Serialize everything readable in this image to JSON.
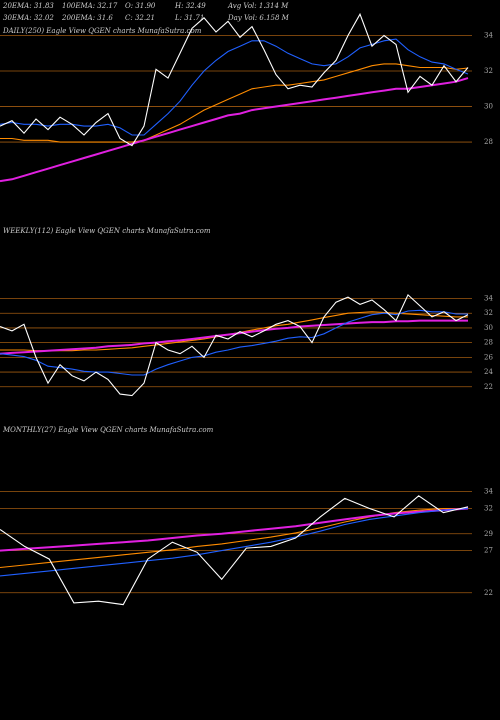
{
  "header": {
    "stats": [
      "20EMA: 31.83",
      "100EMA: 32.17",
      "O: 31.90",
      "H: 32.49",
      "Avg Vol: 1.314  M",
      "30EMA: 32.02",
      "200EMA: 31.6",
      "C: 32.21",
      "L: 31.71",
      "Day Vol: 6.158  M"
    ]
  },
  "chart_data": [
    {
      "type": "line",
      "title": "DAILY(250) Eagle  View  QGEN  charts MunafaSutra.com",
      "ylim": [
        25.3,
        36
      ],
      "yticks": [
        34,
        32,
        30,
        28
      ],
      "series": [
        {
          "color": "#ff8c00",
          "values": [
            28.2,
            28.2,
            28.1,
            28.1,
            28.1,
            28.0,
            28.0,
            28.0,
            28.0,
            28.0,
            28.0,
            28.0,
            28.1,
            28.4,
            28.7,
            29.0,
            29.4,
            29.8,
            30.1,
            30.4,
            30.7,
            31.0,
            31.1,
            31.2,
            31.2,
            31.3,
            31.4,
            31.5,
            31.7,
            31.9,
            32.1,
            32.3,
            32.4,
            32.4,
            32.3,
            32.2,
            32.2,
            32.2,
            32.1,
            32.17
          ]
        },
        {
          "color": "#e020e0",
          "values": [
            25.8,
            25.9,
            26.1,
            26.3,
            26.5,
            26.7,
            26.9,
            27.1,
            27.3,
            27.5,
            27.7,
            27.9,
            28.1,
            28.3,
            28.5,
            28.7,
            28.9,
            29.1,
            29.3,
            29.5,
            29.6,
            29.8,
            29.9,
            30.0,
            30.1,
            30.2,
            30.3,
            30.4,
            30.5,
            30.6,
            30.7,
            30.8,
            30.9,
            31.0,
            31.0,
            31.1,
            31.2,
            31.3,
            31.4,
            31.6
          ]
        },
        {
          "color": "#2060ff",
          "values": [
            29.0,
            29.1,
            29.0,
            29.0,
            28.9,
            29.0,
            29.0,
            28.9,
            28.9,
            29.0,
            28.8,
            28.4,
            28.4,
            29.0,
            29.6,
            30.3,
            31.2,
            32.0,
            32.6,
            33.1,
            33.4,
            33.7,
            33.7,
            33.4,
            33.0,
            32.7,
            32.4,
            32.3,
            32.4,
            32.8,
            33.3,
            33.5,
            33.7,
            33.8,
            33.2,
            32.8,
            32.5,
            32.4,
            32.1,
            31.83
          ]
        },
        {
          "color": "#ffffff",
          "values": [
            28.9,
            29.2,
            28.5,
            29.3,
            28.7,
            29.4,
            29.0,
            28.4,
            29.1,
            29.6,
            28.2,
            27.8,
            28.9,
            32.1,
            31.6,
            33.0,
            34.4,
            35.0,
            34.2,
            34.8,
            33.9,
            34.5,
            33.2,
            31.8,
            31.0,
            31.2,
            31.1,
            31.9,
            32.6,
            34.0,
            35.2,
            33.4,
            34.0,
            33.5,
            30.8,
            31.7,
            31.2,
            32.3,
            31.4,
            32.2
          ]
        }
      ]
    },
    {
      "type": "line",
      "title": "WEEKLY(112) Eagle  View  QGEN  charts MunafaSutra.com",
      "ylim": [
        16.8,
        44
      ],
      "yticks": [
        34,
        32,
        30,
        28,
        26,
        24,
        22
      ],
      "series": [
        {
          "color": "#ff8c00",
          "values": [
            27.0,
            27.0,
            27.0,
            26.9,
            26.9,
            26.9,
            26.9,
            27.0,
            27.0,
            27.1,
            27.2,
            27.3,
            27.5,
            27.7,
            27.9,
            28.1,
            28.3,
            28.5,
            28.8,
            29.1,
            29.4,
            29.7,
            30.0,
            30.3,
            30.5,
            30.8,
            31.1,
            31.4,
            31.7,
            32.0,
            32.1,
            32.2,
            32.1,
            32.0,
            31.9,
            31.8,
            31.7,
            31.6,
            31.5,
            31.5
          ]
        },
        {
          "color": "#e020e0",
          "values": [
            26.5,
            26.6,
            26.7,
            26.8,
            26.9,
            27.0,
            27.1,
            27.2,
            27.3,
            27.5,
            27.6,
            27.7,
            27.9,
            28.0,
            28.2,
            28.3,
            28.5,
            28.7,
            28.9,
            29.1,
            29.3,
            29.5,
            29.7,
            29.9,
            30.0,
            30.2,
            30.3,
            30.4,
            30.5,
            30.6,
            30.7,
            30.8,
            30.8,
            30.9,
            30.9,
            31.0,
            31.0,
            31.0,
            31.0,
            31.0
          ]
        },
        {
          "color": "#2060ff",
          "values": [
            26.5,
            26.3,
            26.1,
            25.6,
            24.8,
            24.6,
            24.4,
            24.1,
            24.0,
            24.0,
            23.8,
            23.6,
            23.6,
            24.4,
            25.0,
            25.5,
            26.0,
            26.2,
            26.7,
            27.0,
            27.4,
            27.6,
            27.9,
            28.2,
            28.6,
            28.8,
            28.7,
            29.2,
            30.0,
            30.8,
            31.3,
            31.8,
            32.0,
            31.8,
            32.3,
            32.4,
            32.2,
            32.2,
            31.9,
            31.9
          ]
        },
        {
          "color": "#ffffff",
          "values": [
            30.2,
            29.6,
            30.5,
            26.0,
            22.5,
            25.0,
            23.5,
            22.8,
            24.0,
            23.0,
            21.0,
            20.8,
            22.5,
            28.0,
            27.0,
            26.5,
            27.5,
            26.0,
            29.0,
            28.5,
            29.5,
            28.8,
            29.6,
            30.5,
            31.0,
            30.2,
            28.0,
            31.5,
            33.5,
            34.2,
            33.2,
            33.8,
            32.5,
            31.0,
            34.5,
            33.0,
            31.5,
            32.2,
            31.0,
            31.8
          ]
        }
      ]
    },
    {
      "type": "line",
      "title": "MONTHLY(27) Eagle  View  QGEN  charts MunafaSutra.com",
      "ylim": [
        16.4,
        41.9
      ],
      "yticks": [
        34,
        32,
        29,
        27,
        22
      ],
      "series": [
        {
          "color": "#ff8c00",
          "values": [
            25.0,
            25.3,
            25.6,
            25.9,
            26.2,
            26.5,
            26.8,
            27.1,
            27.5,
            27.8,
            28.2,
            28.6,
            29.1,
            29.7,
            30.4,
            31.0,
            31.5,
            31.8,
            32.0,
            32.0
          ]
        },
        {
          "color": "#e020e0",
          "values": [
            27.0,
            27.2,
            27.4,
            27.6,
            27.8,
            28.0,
            28.2,
            28.5,
            28.8,
            29.0,
            29.3,
            29.6,
            29.9,
            30.3,
            30.7,
            31.1,
            31.4,
            31.6,
            31.8,
            32.0
          ]
        },
        {
          "color": "#2060ff",
          "values": [
            24.0,
            24.3,
            24.6,
            24.9,
            25.2,
            25.5,
            25.8,
            26.1,
            26.5,
            27.0,
            27.5,
            28.0,
            28.6,
            29.3,
            30.1,
            30.7,
            31.1,
            31.5,
            31.8,
            32.0
          ]
        },
        {
          "color": "#ffffff",
          "values": [
            29.5,
            27.5,
            26.0,
            20.8,
            21.0,
            20.6,
            26.0,
            28.0,
            26.8,
            23.6,
            27.3,
            27.5,
            28.5,
            31.0,
            33.2,
            32.0,
            31.0,
            33.5,
            31.5,
            32.2
          ]
        }
      ]
    }
  ]
}
